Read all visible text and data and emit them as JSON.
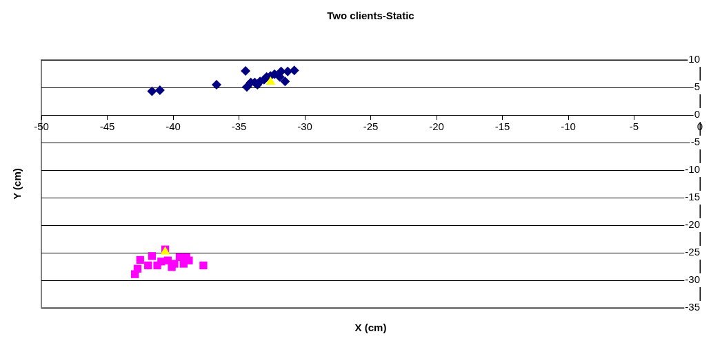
{
  "chart_data": {
    "type": "scatter",
    "title": "Two clients-Static",
    "xlabel": "X (cm)",
    "ylabel": "Y (cm)",
    "xlim": [
      -50,
      0
    ],
    "xticks": [
      -50,
      -45,
      -40,
      -35,
      -30,
      -25,
      -20,
      -15,
      -10,
      -5,
      0
    ],
    "ylim": [
      -35,
      10
    ],
    "yticks": [
      -35,
      -30,
      -25,
      -20,
      -15,
      -10,
      -5,
      0,
      5,
      10
    ],
    "grid": "y",
    "legend": false,
    "series": [
      {
        "color": "#000080",
        "marker": "diamond",
        "x": [
          -41.6,
          -41.0,
          -36.7,
          -34.5,
          -34.4,
          -34.1,
          -33.8,
          -33.6,
          -33.4,
          -33.1,
          -32.9,
          -32.6,
          -32.3,
          -31.9,
          -31.8,
          -31.5,
          -31.3,
          -30.8
        ],
        "values": [
          4.3,
          4.5,
          5.5,
          8,
          5.1,
          5.9,
          5.9,
          5.5,
          6.1,
          6.4,
          6.9,
          7.1,
          7.4,
          6.9,
          7.9,
          6.1,
          7.9,
          8.1
        ]
      },
      {
        "color": "#ff00ff",
        "marker": "square",
        "x": [
          -42.9,
          -42.7,
          -42.5,
          -41.9,
          -41.6,
          -41.2,
          -40.9,
          -40.6,
          -40.4,
          -40.1,
          -39.9,
          -39.5,
          -39.2,
          -39.0,
          -38.8,
          -37.7
        ],
        "values": [
          -28.9,
          -27.9,
          -26.3,
          -27.3,
          -25.6,
          -27.3,
          -26.6,
          -24.4,
          -26.4,
          -27.6,
          -27,
          -25.8,
          -27,
          -25.8,
          -26.4,
          -27.3
        ]
      },
      {
        "color": "#ffff00",
        "marker": "triangle",
        "x": [
          -32.6,
          -40.6
        ],
        "values": [
          6.0,
          -24.8
        ]
      }
    ]
  }
}
